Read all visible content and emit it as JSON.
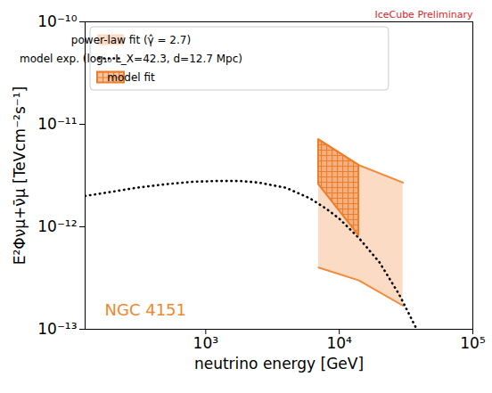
{
  "chart_data": {
    "type": "line",
    "log": true,
    "grid": false,
    "legend": "upper left",
    "x_label": "neutrino energy [GeV]",
    "y_label": "E²Φνμ+ν̄μ [TeVcm⁻²s⁻¹]",
    "xlim": [
      125,
      100000
    ],
    "ylim": [
      1e-13,
      1e-10
    ],
    "xticks": [
      {
        "value": 1000,
        "label": "10³"
      },
      {
        "value": 10000,
        "label": "10⁴"
      },
      {
        "value": 100000,
        "label": "10⁵"
      }
    ],
    "yticks": [
      {
        "value": 1e-13,
        "label": "10⁻¹³"
      },
      {
        "value": 1e-12,
        "label": "10⁻¹²"
      },
      {
        "value": 1e-11,
        "label": "10⁻¹¹"
      },
      {
        "value": 1e-10,
        "label": "10⁻¹⁰"
      }
    ],
    "annotations": [
      {
        "text": "IceCube Preliminary",
        "color": "#d62728"
      },
      {
        "text": "NGC 4151",
        "color": "#f0872e"
      }
    ],
    "series": [
      {
        "name": "power-law fit (γ̂ = 2.7)",
        "type": "band",
        "color": "#f5893a",
        "x": [
          7000,
          14000,
          30000
        ],
        "upper": [
          7.1e-12,
          4e-12,
          2.7e-12
        ],
        "lower": [
          4e-13,
          3e-13,
          1.7e-13
        ]
      },
      {
        "name": "model exp. (log₁₀ L_X=42.3, d=12.7 Mpc)",
        "type": "line",
        "line_style": "dotted",
        "color": "#000000",
        "x": [
          125,
          200,
          300,
          500,
          800,
          1200,
          1800,
          2500,
          4000,
          6000,
          8000,
          10000,
          14000,
          20000,
          28000,
          38000
        ],
        "values": [
          2e-12,
          2.2e-12,
          2.4e-12,
          2.6e-12,
          2.75e-12,
          2.8e-12,
          2.8e-12,
          2.7e-12,
          2.4e-12,
          1.9e-12,
          1.5e-12,
          1.2e-12,
          7.8e-13,
          4.5e-13,
          2.2e-13,
          1e-13
        ]
      },
      {
        "name": "model fit",
        "type": "hatched_band",
        "color": "#ee7d2a",
        "x": [
          7000,
          14000
        ],
        "upper": [
          7.1e-12,
          4e-12
        ],
        "lower": [
          2.6e-12,
          8.2e-13
        ]
      }
    ]
  }
}
